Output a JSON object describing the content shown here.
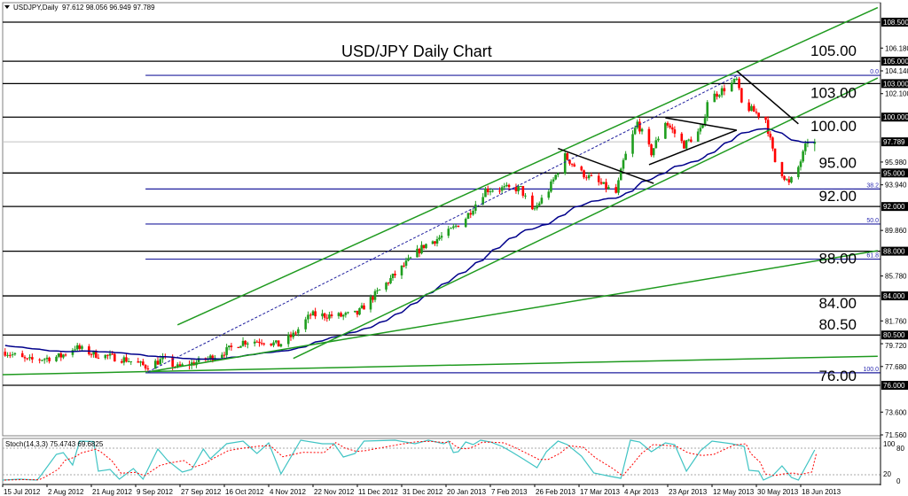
{
  "header": {
    "symbol": "USDJPY,Daily",
    "ohlc": "97.612 98.056 96.949 97.789",
    "menu_icon": "triangle-down-icon"
  },
  "stoch_header": "Stoch(14,3,3) 75.4743 69.6825",
  "colors": {
    "up": "#1f9e1f",
    "down": "#ff0000",
    "ma": "#00008b",
    "channel": "#1f9a1f",
    "fib": "#1f1f9e",
    "level": "#000000",
    "stoch_k": "#40c4c4",
    "stoch_d": "#ff0000"
  },
  "chart_data": {
    "type": "candlestick",
    "title": "USD/JPY Daily Chart",
    "ylim": [
      70.5,
      110.5
    ],
    "current_price": "97.789",
    "last_bar": {
      "open": 97.612,
      "high": 98.056,
      "low": 96.949,
      "close": 97.789
    },
    "x_ticks": [
      "15 Jul 2012",
      "2 Aug 2012",
      "21 Aug 2012",
      "9 Sep 2012",
      "27 Sep 2012",
      "16 Oct 2012",
      "4 Nov 2012",
      "22 Nov 2012",
      "11 Dec 2012",
      "31 Dec 2012",
      "20 Jan 2013",
      "7 Feb 2013",
      "26 Feb 2013",
      "17 Mar 2013",
      "4 Apr 2013",
      "23 Apr 2013",
      "12 May 2013",
      "30 May 2013",
      "18 Jun 2013"
    ],
    "y_ticks": [
      "106.180",
      "104.140",
      "102.100",
      "95.980",
      "93.940",
      "89.860",
      "85.780",
      "81.760",
      "79.720",
      "77.680",
      "73.600",
      "71.560"
    ],
    "approx_close_path": [
      [
        "16 Jul 2012",
        79.0
      ],
      [
        "25 Jul 2012",
        78.2
      ],
      [
        "8 Aug 2012",
        78.6
      ],
      [
        "14 Aug 2012",
        79.4
      ],
      [
        "22 Aug 2012",
        78.8
      ],
      [
        "5 Sep 2012",
        78.3
      ],
      [
        "13 Sep 2012",
        77.7
      ],
      [
        "20 Sep 2012",
        78.3
      ],
      [
        "26 Sep 2012",
        77.6
      ],
      [
        "8 Oct 2012",
        78.3
      ],
      [
        "16 Oct 2012",
        79.0
      ],
      [
        "24 Oct 2012",
        79.9
      ],
      [
        "2 Nov 2012",
        80.0
      ],
      [
        "8 Nov 2012",
        79.6
      ],
      [
        "14 Nov 2012",
        80.5
      ],
      [
        "21 Nov 2012",
        82.3
      ],
      [
        "4 Dec 2012",
        82.2
      ],
      [
        "11 Dec 2012",
        82.4
      ],
      [
        "17 Dec 2012",
        83.7
      ],
      [
        "31 Dec 2012",
        86.5
      ],
      [
        "10 Jan 2013",
        88.5
      ],
      [
        "20 Jan 2013",
        89.5
      ],
      [
        "28 Jan 2013",
        91.0
      ],
      [
        "5 Feb 2013",
        93.5
      ],
      [
        "12 Feb 2013",
        93.6
      ],
      [
        "20 Feb 2013",
        93.6
      ],
      [
        "25 Feb 2013",
        91.5
      ],
      [
        "4 Mar 2013",
        93.5
      ],
      [
        "11 Mar 2013",
        96.5
      ],
      [
        "18 Mar 2013",
        95.0
      ],
      [
        "1 Apr 2013",
        93.2
      ],
      [
        "4 Apr 2013",
        96.0
      ],
      [
        "10 Apr 2013",
        99.5
      ],
      [
        "16 Apr 2013",
        96.8
      ],
      [
        "22 Apr 2013",
        99.6
      ],
      [
        "30 Apr 2013",
        97.5
      ],
      [
        "8 May 2013",
        99.0
      ],
      [
        "10 May 2013",
        101.5
      ],
      [
        "22 May 2013",
        103.3
      ],
      [
        "24 May 2013",
        101.2
      ],
      [
        "3 Jun 2013",
        99.8
      ],
      [
        "7 Jun 2013",
        96.0
      ],
      [
        "13 Jun 2013",
        94.0
      ],
      [
        "17 Jun 2013",
        95.5
      ],
      [
        "21 Jun 2013",
        97.9
      ],
      [
        "24 Jun 2013",
        97.8
      ]
    ],
    "levels": [
      {
        "price": 108.5,
        "axis_label": "108.500",
        "label": ""
      },
      {
        "price": 105.0,
        "axis_label": "105.000",
        "label": "105.00"
      },
      {
        "price": 103.0,
        "axis_label": "103.000",
        "label": "103.00"
      },
      {
        "price": 100.0,
        "axis_label": "100.000",
        "label": "100.00"
      },
      {
        "price": 95.0,
        "axis_label": "95.000",
        "label": "95.00"
      },
      {
        "price": 92.0,
        "axis_label": "92.000",
        "label": "92.00"
      },
      {
        "price": 88.0,
        "axis_label": "88.000",
        "label": "88.00"
      },
      {
        "price": 84.0,
        "axis_label": "84.000",
        "label": "84.00"
      },
      {
        "price": 80.5,
        "axis_label": "80.500",
        "label": "80.50"
      },
      {
        "price": 76.0,
        "axis_label": "76.000",
        "label": "76.00"
      }
    ],
    "fibonacci": {
      "start_date": "13 Sep 2012",
      "levels": [
        {
          "ratio": "0.0",
          "price": 103.74
        },
        {
          "ratio": "38.2",
          "price": 93.57
        },
        {
          "ratio": "50.0",
          "price": 90.43
        },
        {
          "ratio": "61.8",
          "price": 87.29
        },
        {
          "ratio": "100.0",
          "price": 77.12
        }
      ]
    },
    "trendlines": [
      {
        "kind": "channel-upper",
        "color": "green",
        "from": [
          "26 Sep 2012",
          81.4
        ],
        "to": [
          "21 Jul 2013",
          109.8
        ]
      },
      {
        "kind": "channel-lower",
        "color": "green",
        "from": [
          "14 Nov 2012",
          78.4
        ],
        "to": [
          "21 Jul 2013",
          103.5
        ]
      },
      {
        "kind": "support",
        "color": "green",
        "from": [
          "14 Sep 2012",
          77.2
        ],
        "to": [
          "21 Jul 2013",
          88.05
        ]
      },
      {
        "kind": "support",
        "color": "green",
        "from": [
          "14 Jul 2012",
          76.95
        ],
        "to": [
          "21 Jul 2013",
          78.6
        ]
      },
      {
        "kind": "fib-diagonal",
        "color": "blue-dashed",
        "from": [
          "14 Sep 2012",
          77.2
        ],
        "to": [
          "22 May 2013",
          103.7
        ]
      },
      {
        "kind": "pattern",
        "color": "black",
        "from": [
          "8 Mar 2013",
          97.2
        ],
        "to": [
          "17 Apr 2013",
          94.07
        ]
      },
      {
        "kind": "pattern",
        "color": "black",
        "from": [
          "22 Apr 2013",
          99.94
        ],
        "to": [
          "22 May 2013",
          98.83
        ]
      },
      {
        "kind": "pattern",
        "color": "black",
        "from": [
          "15 Apr 2013",
          95.74
        ],
        "to": [
          "22 May 2013",
          98.83
        ]
      },
      {
        "kind": "pattern",
        "color": "black",
        "from": [
          "22 May 2013",
          104.14
        ],
        "to": [
          "17 Jun 2013",
          99.4
        ]
      }
    ],
    "stochastic": {
      "params": "14,3,3",
      "levels": [
        80,
        20
      ],
      "ylim": [
        0,
        100
      ],
      "y_ticks": [
        "100",
        "80",
        "20",
        "0"
      ],
      "k": [
        [
          "15 Jul 2012",
          8
        ],
        [
          "22 Jul 2012",
          10
        ],
        [
          "29 Jul 2012",
          8
        ],
        [
          "31 Jul 2012",
          22
        ],
        [
          "6 Aug 2012",
          66
        ],
        [
          "9 Aug 2012",
          70
        ],
        [
          "13 Aug 2012",
          42
        ],
        [
          "16 Aug 2012",
          96
        ],
        [
          "22 Aug 2012",
          95
        ],
        [
          "24 Aug 2012",
          28
        ],
        [
          "29 Aug 2012",
          32
        ],
        [
          "2 Sep 2012",
          10
        ],
        [
          "8 Sep 2012",
          34
        ],
        [
          "12 Sep 2012",
          10
        ],
        [
          "18 Sep 2012",
          78
        ],
        [
          "22 Sep 2012",
          52
        ],
        [
          "28 Sep 2012",
          26
        ],
        [
          "2 Oct 2012",
          32
        ],
        [
          "7 Oct 2012",
          78
        ],
        [
          "10 Oct 2012",
          56
        ],
        [
          "17 Oct 2012",
          90
        ],
        [
          "24 Oct 2012",
          96
        ],
        [
          "30 Oct 2012",
          68
        ],
        [
          "4 Nov 2012",
          92
        ],
        [
          "9 Nov 2012",
          22
        ],
        [
          "17 Nov 2012",
          98
        ],
        [
          "26 Nov 2012",
          90
        ],
        [
          "1 Dec 2012",
          90
        ],
        [
          "5 Dec 2012",
          60
        ],
        [
          "10 Dec 2012",
          68
        ],
        [
          "14 Dec 2012",
          96
        ],
        [
          "28 Dec 2012",
          98
        ],
        [
          "6 Jan 2013",
          90
        ],
        [
          "12 Jan 2013",
          98
        ],
        [
          "19 Jan 2013",
          90
        ],
        [
          "21 Jan 2013",
          96
        ],
        [
          "23 Jan 2013",
          70
        ],
        [
          "25 Jan 2013",
          72
        ],
        [
          "28 Jan 2013",
          94
        ],
        [
          "31 Jan 2013",
          88
        ],
        [
          "3 Feb 2013",
          98
        ],
        [
          "7 Feb 2013",
          94
        ],
        [
          "12 Feb 2013",
          84
        ],
        [
          "16 Feb 2013",
          72
        ],
        [
          "21 Feb 2013",
          56
        ],
        [
          "27 Feb 2013",
          36
        ],
        [
          "3 Mar 2013",
          72
        ],
        [
          "8 Mar 2013",
          96
        ],
        [
          "12 Mar 2013",
          88
        ],
        [
          "18 Mar 2013",
          62
        ],
        [
          "23 Mar 2013",
          24
        ],
        [
          "30 Mar 2013",
          16
        ],
        [
          "3 Apr 2013",
          12
        ],
        [
          "7 Apr 2013",
          98
        ],
        [
          "11 Apr 2013",
          94
        ],
        [
          "16 Apr 2013",
          72
        ],
        [
          "22 Apr 2013",
          92
        ],
        [
          "26 Apr 2013",
          88
        ],
        [
          "1 May 2013",
          28
        ],
        [
          "7 May 2013",
          74
        ],
        [
          "12 May 2013",
          96
        ],
        [
          "20 May 2013",
          90
        ],
        [
          "25 May 2013",
          84
        ],
        [
          "27 May 2013",
          30
        ],
        [
          "31 May 2013",
          28
        ],
        [
          "2 Jun 2013",
          8
        ],
        [
          "6 Jun 2013",
          18
        ],
        [
          "10 Jun 2013",
          40
        ],
        [
          "14 Jun 2013",
          14
        ],
        [
          "17 Jun 2013",
          8
        ],
        [
          "22 Jun 2013",
          56
        ],
        [
          "24 Jun 2013",
          76
        ]
      ],
      "last_k": 75.4743,
      "last_d": 69.6825
    }
  }
}
